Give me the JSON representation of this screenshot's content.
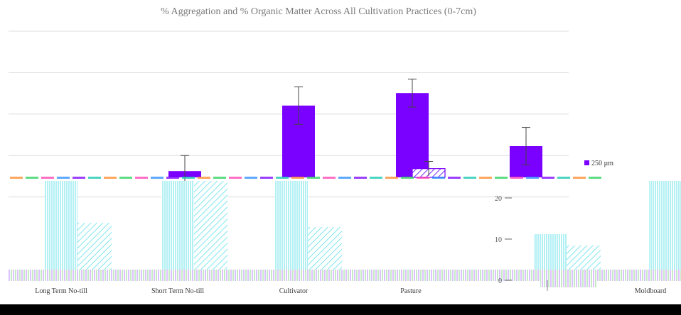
{
  "chart_data": {
    "type": "bar",
    "title": "% Aggregation and % Organic Matter Across All Cultivation Practices (0-7cm)",
    "categories": [
      "Long Term No-till",
      "Short Term No-till",
      "Cultivator",
      "Pasture",
      "",
      "Moldboard"
    ],
    "series": [
      {
        "name": "250 µm",
        "values": [
          0,
          2,
          23,
          27,
          10,
          null
        ],
        "errors": [
          0,
          5,
          6,
          4.5,
          6,
          null
        ]
      },
      {
        "name": "",
        "values": [
          null,
          null,
          null,
          2.8,
          null,
          null
        ],
        "errors": [
          null,
          null,
          null,
          2.3,
          null,
          null
        ]
      }
    ],
    "inner_axis": {
      "ticks": [
        "20",
        "10",
        "0"
      ]
    },
    "colors": {
      "primary": "#7a00ff",
      "secondary": "#7fe6ee",
      "grid": "#dcdcdc"
    }
  }
}
